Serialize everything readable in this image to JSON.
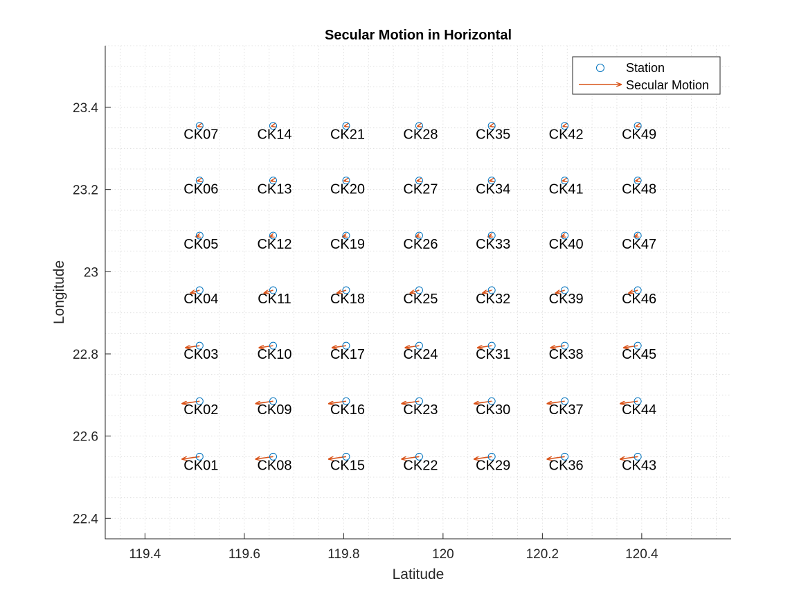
{
  "chart_data": {
    "type": "scatter",
    "title": "Secular Motion in Horizontal",
    "xlabel": "Latitude",
    "ylabel": "Longitude",
    "xlim": [
      119.32,
      120.58
    ],
    "ylim": [
      22.35,
      23.55
    ],
    "xticks": [
      119.4,
      119.6,
      119.8,
      120.0,
      120.2,
      120.4
    ],
    "xtick_labels": [
      "119.4",
      "119.6",
      "119.8",
      "120",
      "120.2",
      "120.4"
    ],
    "yticks": [
      22.4,
      22.6,
      22.8,
      23.0,
      23.2,
      23.4
    ],
    "ytick_labels": [
      "22.4",
      "22.6",
      "22.8",
      "23",
      "23.2",
      "23.4"
    ],
    "grid": "minor dotted",
    "legend_placement": "top-right",
    "legend": [
      {
        "label": "Station",
        "marker": "circle"
      },
      {
        "label": "Secular Motion",
        "marker": "arrow"
      }
    ],
    "colors": {
      "station": "#0072BD",
      "motion": "#D95319",
      "axes": "#262626"
    },
    "stations": [
      {
        "name": "CK01",
        "x": 119.51,
        "y": 22.55,
        "u": -0.035,
        "v": -0.006
      },
      {
        "name": "CK02",
        "x": 119.51,
        "y": 22.685,
        "u": -0.035,
        "v": -0.006
      },
      {
        "name": "CK03",
        "x": 119.51,
        "y": 22.82,
        "u": -0.028,
        "v": -0.005
      },
      {
        "name": "CK04",
        "x": 119.51,
        "y": 22.955,
        "u": -0.018,
        "v": -0.007
      },
      {
        "name": "CK05",
        "x": 119.51,
        "y": 23.088,
        "u": -0.007,
        "v": -0.003
      },
      {
        "name": "CK06",
        "x": 119.51,
        "y": 23.222,
        "u": -0.004,
        "v": -0.001
      },
      {
        "name": "CK07",
        "x": 119.51,
        "y": 23.355,
        "u": -0.003,
        "v": -0.001
      },
      {
        "name": "CK08",
        "x": 119.658,
        "y": 22.55,
        "u": -0.035,
        "v": -0.006
      },
      {
        "name": "CK09",
        "x": 119.658,
        "y": 22.685,
        "u": -0.035,
        "v": -0.006
      },
      {
        "name": "CK10",
        "x": 119.658,
        "y": 22.82,
        "u": -0.028,
        "v": -0.005
      },
      {
        "name": "CK11",
        "x": 119.658,
        "y": 22.955,
        "u": -0.018,
        "v": -0.007
      },
      {
        "name": "CK12",
        "x": 119.658,
        "y": 23.088,
        "u": -0.007,
        "v": -0.003
      },
      {
        "name": "CK13",
        "x": 119.658,
        "y": 23.222,
        "u": -0.004,
        "v": -0.001
      },
      {
        "name": "CK14",
        "x": 119.658,
        "y": 23.355,
        "u": -0.003,
        "v": -0.001
      },
      {
        "name": "CK15",
        "x": 119.805,
        "y": 22.55,
        "u": -0.035,
        "v": -0.006
      },
      {
        "name": "CK16",
        "x": 119.805,
        "y": 22.685,
        "u": -0.035,
        "v": -0.006
      },
      {
        "name": "CK17",
        "x": 119.805,
        "y": 22.82,
        "u": -0.028,
        "v": -0.005
      },
      {
        "name": "CK18",
        "x": 119.805,
        "y": 22.955,
        "u": -0.018,
        "v": -0.007
      },
      {
        "name": "CK19",
        "x": 119.805,
        "y": 23.088,
        "u": -0.007,
        "v": -0.003
      },
      {
        "name": "CK20",
        "x": 119.805,
        "y": 23.222,
        "u": -0.004,
        "v": -0.001
      },
      {
        "name": "CK21",
        "x": 119.805,
        "y": 23.355,
        "u": -0.003,
        "v": -0.001
      },
      {
        "name": "CK22",
        "x": 119.952,
        "y": 22.55,
        "u": -0.035,
        "v": -0.006
      },
      {
        "name": "CK23",
        "x": 119.952,
        "y": 22.685,
        "u": -0.035,
        "v": -0.006
      },
      {
        "name": "CK24",
        "x": 119.952,
        "y": 22.82,
        "u": -0.028,
        "v": -0.005
      },
      {
        "name": "CK25",
        "x": 119.952,
        "y": 22.955,
        "u": -0.018,
        "v": -0.007
      },
      {
        "name": "CK26",
        "x": 119.952,
        "y": 23.088,
        "u": -0.007,
        "v": -0.003
      },
      {
        "name": "CK27",
        "x": 119.952,
        "y": 23.222,
        "u": -0.004,
        "v": -0.001
      },
      {
        "name": "CK28",
        "x": 119.952,
        "y": 23.355,
        "u": -0.003,
        "v": -0.001
      },
      {
        "name": "CK29",
        "x": 120.098,
        "y": 22.55,
        "u": -0.035,
        "v": -0.006
      },
      {
        "name": "CK30",
        "x": 120.098,
        "y": 22.685,
        "u": -0.035,
        "v": -0.006
      },
      {
        "name": "CK31",
        "x": 120.098,
        "y": 22.82,
        "u": -0.028,
        "v": -0.005
      },
      {
        "name": "CK32",
        "x": 120.098,
        "y": 22.955,
        "u": -0.018,
        "v": -0.007
      },
      {
        "name": "CK33",
        "x": 120.098,
        "y": 23.088,
        "u": -0.007,
        "v": -0.003
      },
      {
        "name": "CK34",
        "x": 120.098,
        "y": 23.222,
        "u": -0.004,
        "v": -0.001
      },
      {
        "name": "CK35",
        "x": 120.098,
        "y": 23.355,
        "u": -0.003,
        "v": -0.001
      },
      {
        "name": "CK36",
        "x": 120.245,
        "y": 22.55,
        "u": -0.035,
        "v": -0.006
      },
      {
        "name": "CK37",
        "x": 120.245,
        "y": 22.685,
        "u": -0.035,
        "v": -0.006
      },
      {
        "name": "CK38",
        "x": 120.245,
        "y": 22.82,
        "u": -0.028,
        "v": -0.005
      },
      {
        "name": "CK39",
        "x": 120.245,
        "y": 22.955,
        "u": -0.018,
        "v": -0.007
      },
      {
        "name": "CK40",
        "x": 120.245,
        "y": 23.088,
        "u": -0.007,
        "v": -0.003
      },
      {
        "name": "CK41",
        "x": 120.245,
        "y": 23.222,
        "u": -0.004,
        "v": -0.001
      },
      {
        "name": "CK42",
        "x": 120.245,
        "y": 23.355,
        "u": -0.003,
        "v": -0.001
      },
      {
        "name": "CK43",
        "x": 120.392,
        "y": 22.55,
        "u": -0.035,
        "v": -0.006
      },
      {
        "name": "CK44",
        "x": 120.392,
        "y": 22.685,
        "u": -0.035,
        "v": -0.006
      },
      {
        "name": "CK45",
        "x": 120.392,
        "y": 22.82,
        "u": -0.028,
        "v": -0.005
      },
      {
        "name": "CK46",
        "x": 120.392,
        "y": 22.955,
        "u": -0.018,
        "v": -0.007
      },
      {
        "name": "CK47",
        "x": 120.392,
        "y": 23.088,
        "u": -0.007,
        "v": -0.003
      },
      {
        "name": "CK48",
        "x": 120.392,
        "y": 23.222,
        "u": -0.004,
        "v": -0.001
      },
      {
        "name": "CK49",
        "x": 120.392,
        "y": 23.355,
        "u": -0.003,
        "v": -0.001
      }
    ]
  }
}
